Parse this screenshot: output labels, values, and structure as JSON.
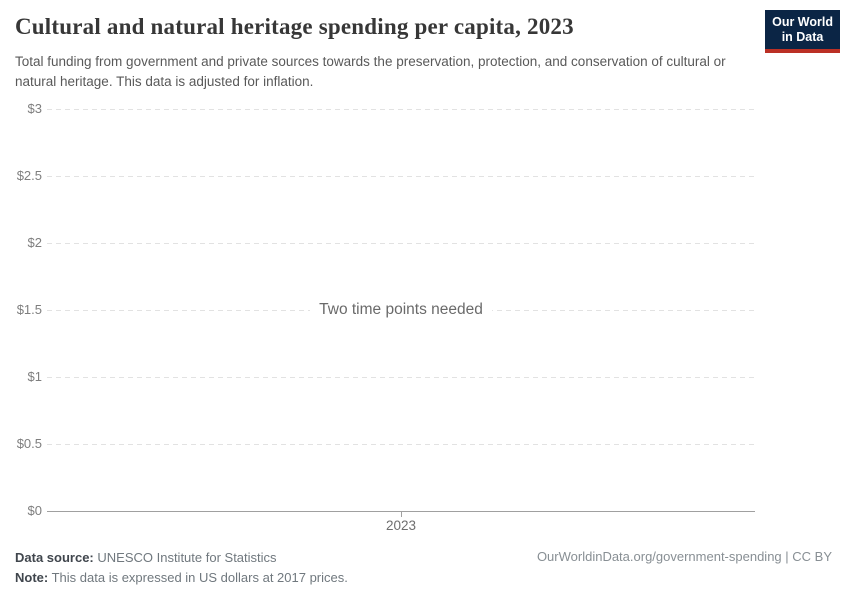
{
  "header": {
    "title": "Cultural and natural heritage spending per capita, 2023",
    "subtitle": "Total funding from government and private sources towards the preservation, protection, and conservation of cultural or natural heritage. This data is adjusted for inflation.",
    "logo": {
      "line1": "Our World",
      "line2": "in Data",
      "bg_color": "#0b2545",
      "stripe_color": "#bb3025"
    }
  },
  "chart_data": {
    "type": "line",
    "title": "Cultural and natural heritage spending per capita, 2023",
    "xlabel": "",
    "ylabel": "",
    "ylim": [
      0,
      3
    ],
    "grid": true,
    "series": [],
    "message": "Two time points needed",
    "yticks": [
      {
        "label": "$3",
        "value": 3
      },
      {
        "label": "$2.5",
        "value": 2.5
      },
      {
        "label": "$2",
        "value": 2
      },
      {
        "label": "$1.5",
        "value": 1.5
      },
      {
        "label": "$1",
        "value": 1
      },
      {
        "label": "$0.5",
        "value": 0.5
      },
      {
        "label": "$0",
        "value": 0
      }
    ],
    "xticks": [
      {
        "label": "2023",
        "value": 2023
      }
    ]
  },
  "footer": {
    "datasource_label": "Data source:",
    "datasource_value": "UNESCO Institute for Statistics",
    "note_label": "Note:",
    "note_value": "This data is expressed in US dollars at 2017 prices.",
    "link": "OurWorldinData.org/government-spending | CC BY"
  }
}
